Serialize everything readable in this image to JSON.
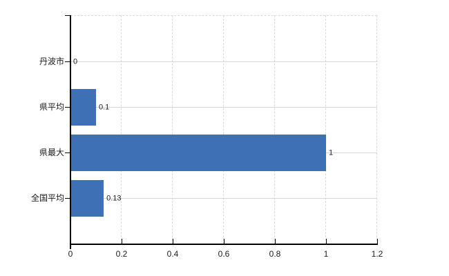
{
  "chart_data": {
    "type": "bar",
    "orientation": "horizontal",
    "title": "",
    "xlabel": "",
    "ylabel": "",
    "categories": [
      "丹波市",
      "県平均",
      "県最大",
      "全国平均"
    ],
    "values": [
      0,
      0.1,
      1,
      0.13
    ],
    "value_labels": [
      "0",
      "0.1",
      "1",
      "0.13"
    ],
    "xlim": [
      0,
      1.2
    ],
    "x_ticks": [
      0,
      0.2,
      0.4,
      0.6,
      0.8,
      1,
      1.2
    ],
    "x_tick_labels": [
      "0",
      "0.2",
      "0.4",
      "0.6",
      "0.8",
      "1",
      "1.2"
    ],
    "grid": true,
    "legend": false,
    "colors": {
      "bar": "#3e70b6",
      "grid_solid": "#d6d6d6",
      "grid_dashed": "#d9d9d9",
      "axis": "#000000",
      "text": "#1a1a1a",
      "background": "#ffffff"
    }
  }
}
